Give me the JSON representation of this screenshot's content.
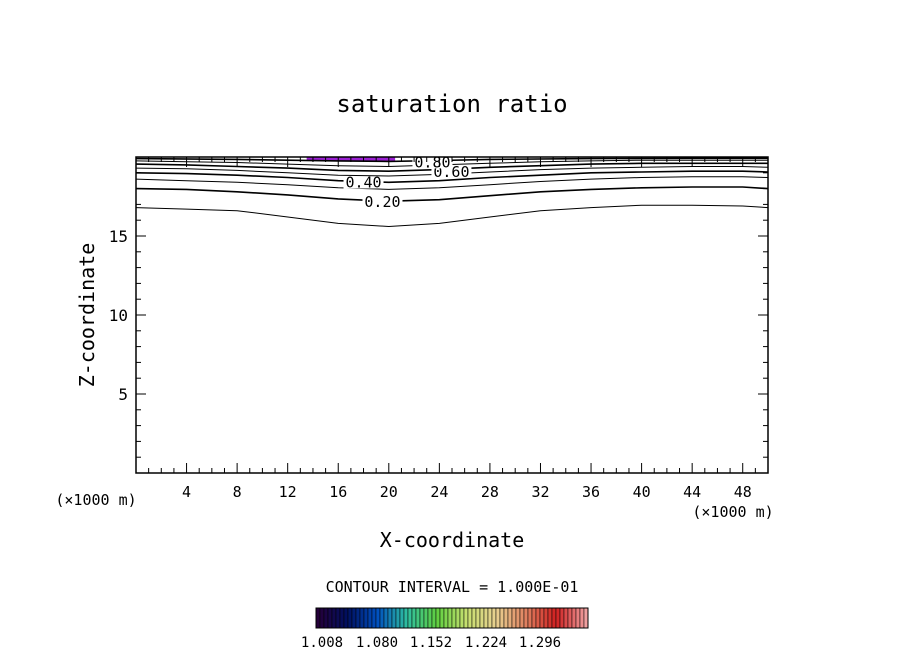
{
  "chart_data": {
    "type": "contour",
    "title": "saturation ratio",
    "xlabel": "X-coordinate",
    "ylabel": "Z-coordinate",
    "x_unit_left": "(×1000 m)",
    "x_unit_right": "(×1000 m)",
    "xlim": [
      0,
      50
    ],
    "ylim": [
      0,
      20
    ],
    "xticks": [
      4,
      8,
      12,
      16,
      20,
      24,
      28,
      32,
      36,
      40,
      44,
      48
    ],
    "yticks": [
      5,
      10,
      15
    ],
    "contour_interval_text": "CONTOUR INTERVAL = 1.000E-01",
    "contours": [
      {
        "level": 0.1,
        "label": "",
        "points": [
          [
            0,
            16.8
          ],
          [
            4,
            16.7
          ],
          [
            8,
            16.6
          ],
          [
            12,
            16.2
          ],
          [
            16,
            15.8
          ],
          [
            20,
            15.6
          ],
          [
            24,
            15.8
          ],
          [
            28,
            16.2
          ],
          [
            32,
            16.6
          ],
          [
            36,
            16.8
          ],
          [
            40,
            16.95
          ],
          [
            44,
            16.95
          ],
          [
            48,
            16.9
          ],
          [
            50,
            16.8
          ]
        ]
      },
      {
        "level": 0.2,
        "label": "0.20",
        "points": [
          [
            0,
            18.0
          ],
          [
            4,
            17.95
          ],
          [
            8,
            17.8
          ],
          [
            12,
            17.6
          ],
          [
            16,
            17.35
          ],
          [
            20,
            17.2
          ],
          [
            24,
            17.3
          ],
          [
            28,
            17.55
          ],
          [
            32,
            17.8
          ],
          [
            36,
            17.95
          ],
          [
            40,
            18.05
          ],
          [
            44,
            18.1
          ],
          [
            48,
            18.1
          ],
          [
            50,
            18.0
          ]
        ]
      },
      {
        "level": 0.3,
        "label": "",
        "points": [
          [
            0,
            18.6
          ],
          [
            4,
            18.5
          ],
          [
            8,
            18.4
          ],
          [
            12,
            18.25
          ],
          [
            16,
            18.05
          ],
          [
            20,
            17.95
          ],
          [
            24,
            18.05
          ],
          [
            28,
            18.25
          ],
          [
            32,
            18.45
          ],
          [
            36,
            18.6
          ],
          [
            40,
            18.7
          ],
          [
            44,
            18.75
          ],
          [
            48,
            18.75
          ],
          [
            50,
            18.7
          ]
        ]
      },
      {
        "level": 0.4,
        "label": "0.40",
        "points": [
          [
            0,
            19.0
          ],
          [
            4,
            18.95
          ],
          [
            8,
            18.85
          ],
          [
            12,
            18.7
          ],
          [
            16,
            18.5
          ],
          [
            20,
            18.4
          ],
          [
            24,
            18.5
          ],
          [
            28,
            18.7
          ],
          [
            32,
            18.85
          ],
          [
            36,
            19.0
          ],
          [
            40,
            19.05
          ],
          [
            44,
            19.1
          ],
          [
            48,
            19.1
          ],
          [
            50,
            19.05
          ]
        ]
      },
      {
        "level": 0.5,
        "label": "",
        "points": [
          [
            0,
            19.3
          ],
          [
            4,
            19.25
          ],
          [
            8,
            19.15
          ],
          [
            12,
            19.0
          ],
          [
            16,
            18.85
          ],
          [
            20,
            18.8
          ],
          [
            24,
            18.9
          ],
          [
            28,
            19.05
          ],
          [
            32,
            19.2
          ],
          [
            36,
            19.3
          ],
          [
            40,
            19.35
          ],
          [
            44,
            19.4
          ],
          [
            48,
            19.4
          ],
          [
            50,
            19.35
          ]
        ]
      },
      {
        "level": 0.6,
        "label": "0.60",
        "points": [
          [
            0,
            19.55
          ],
          [
            4,
            19.5
          ],
          [
            8,
            19.4
          ],
          [
            12,
            19.3
          ],
          [
            16,
            19.15
          ],
          [
            20,
            19.1
          ],
          [
            24,
            19.2
          ],
          [
            28,
            19.35
          ],
          [
            32,
            19.45
          ],
          [
            36,
            19.55
          ],
          [
            40,
            19.6
          ],
          [
            44,
            19.6
          ],
          [
            48,
            19.6
          ],
          [
            50,
            19.6
          ]
        ]
      },
      {
        "level": 0.7,
        "label": "",
        "points": [
          [
            0,
            19.75
          ],
          [
            4,
            19.7
          ],
          [
            8,
            19.65
          ],
          [
            12,
            19.55
          ],
          [
            16,
            19.45
          ],
          [
            20,
            19.4
          ],
          [
            24,
            19.5
          ],
          [
            28,
            19.6
          ],
          [
            32,
            19.7
          ],
          [
            36,
            19.75
          ],
          [
            40,
            19.8
          ],
          [
            44,
            19.8
          ],
          [
            48,
            19.8
          ],
          [
            50,
            19.8
          ]
        ]
      },
      {
        "level": 0.8,
        "label": "0.80",
        "points": [
          [
            0,
            19.9
          ],
          [
            8,
            19.85
          ],
          [
            16,
            19.75
          ],
          [
            20,
            19.72
          ],
          [
            24,
            19.78
          ],
          [
            28,
            19.85
          ],
          [
            36,
            19.9
          ],
          [
            44,
            19.92
          ],
          [
            50,
            19.92
          ]
        ]
      }
    ],
    "shaded_region": {
      "x": [
        13.5,
        20.5
      ],
      "y": [
        19.75,
        20
      ],
      "color": "#9a1fd2"
    },
    "colorbar": {
      "ticks": [
        "1.008",
        "1.080",
        "1.152",
        "1.224",
        "1.296"
      ],
      "colors": [
        "#25003a",
        "#001060",
        "#0050c0",
        "#30c0a0",
        "#60d040",
        "#c8e070",
        "#e8d090",
        "#e08060",
        "#d02020",
        "#f0a0a0"
      ]
    }
  }
}
